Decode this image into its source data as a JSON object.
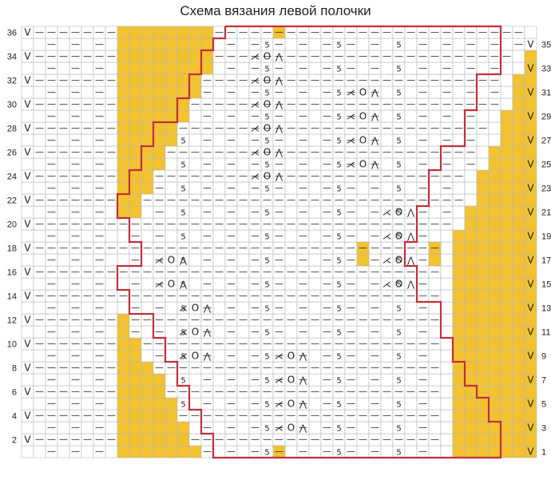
{
  "title": "Схема вязания левой полочки",
  "rows": 36,
  "columns": 43,
  "row_labels_left": [
    "2",
    "4",
    "6",
    "8",
    "10",
    "12",
    "14",
    "16",
    "18",
    "20",
    "22",
    "24",
    "26",
    "28",
    "30",
    "32",
    "34",
    "36"
  ],
  "row_labels_right": [
    "1",
    "3",
    "5",
    "7",
    "9",
    "11",
    "13",
    "15",
    "17",
    "19",
    "21",
    "23",
    "25",
    "27",
    "29",
    "31",
    "33",
    "35"
  ],
  "colors": {
    "fill": "#f2c230",
    "grid": "#b8b8b8",
    "outline": "#c0303a",
    "symbol": "#222222"
  },
  "symbols": {
    "knit": "—",
    "slip": "V",
    "yarn_over": "O",
    "five_together": "5",
    "decrease_left": "⋀",
    "decrease_right": "⋌"
  },
  "legend": []
}
